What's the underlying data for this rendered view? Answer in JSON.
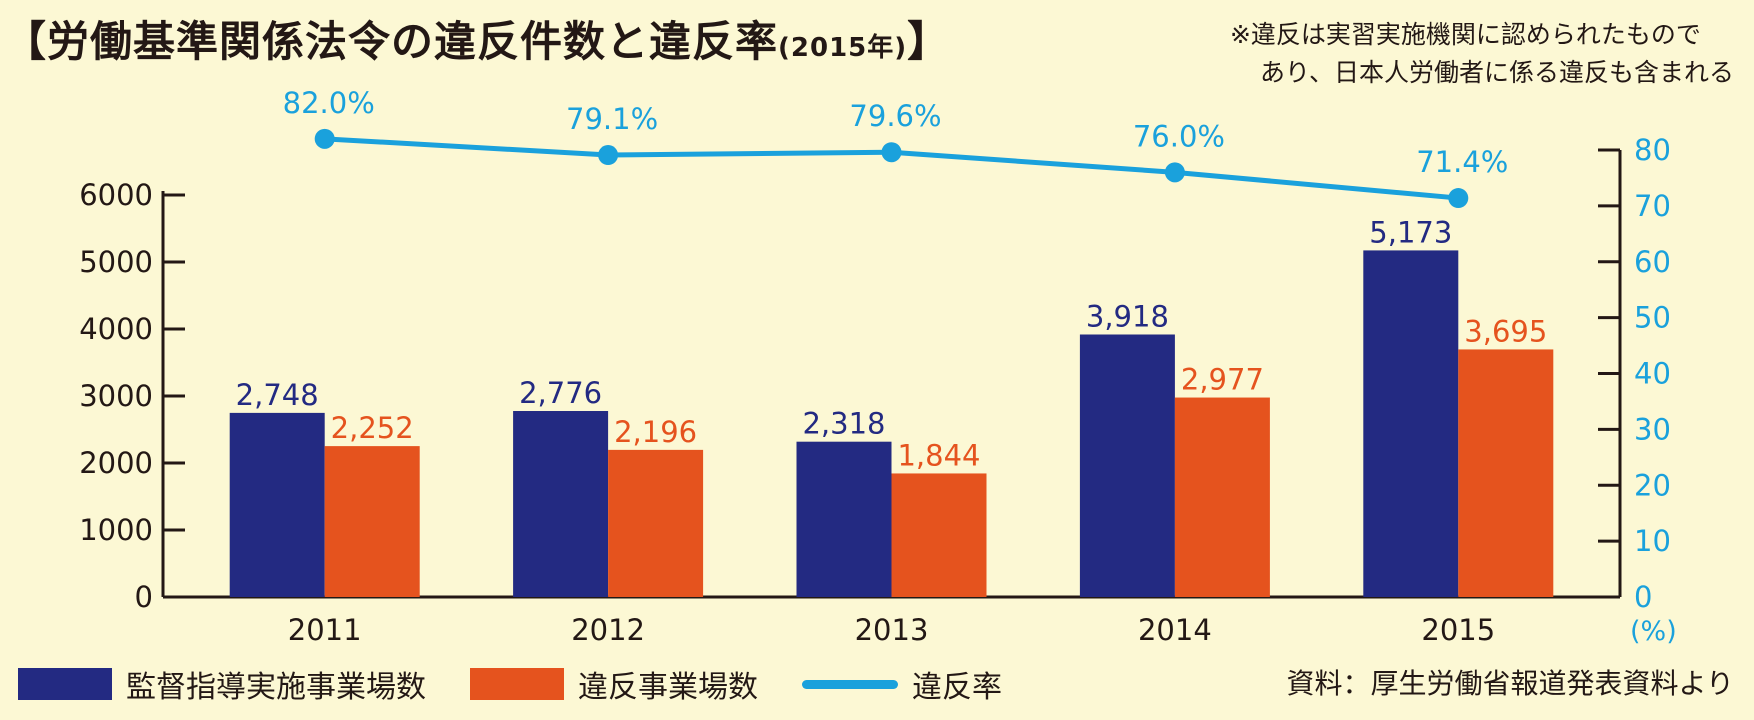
{
  "title": {
    "bracket_open": "【",
    "main": "労働基準関係法令の違反件数と違反率",
    "sub": "(2015年)",
    "bracket_close": "】"
  },
  "note": {
    "line1": "※違反は実習実施機関に認められたもので",
    "line2": "あり、日本人労働者に係る違反も含まれる"
  },
  "source": "資料：厚生労働省報道発表資料より",
  "colors": {
    "bar1": "#232a82",
    "bar2": "#e5531e",
    "line": "#1aa1dc",
    "axis": "#231815",
    "background": "#fcf8d4"
  },
  "chart_data": {
    "type": "bar",
    "categories": [
      "2011",
      "2012",
      "2013",
      "2014",
      "2015"
    ],
    "series": [
      {
        "name": "監督指導実施事業場数",
        "values": [
          2748,
          2776,
          2318,
          3918,
          5173
        ],
        "labels": [
          "2,748",
          "2,776",
          "2,318",
          "3,918",
          "5,173"
        ],
        "axis": "left"
      },
      {
        "name": "違反事業場数",
        "values": [
          2252,
          2196,
          1844,
          2977,
          3695
        ],
        "labels": [
          "2,252",
          "2,196",
          "1,844",
          "2,977",
          "3,695"
        ],
        "axis": "left"
      },
      {
        "name": "違反率",
        "type": "line",
        "values": [
          82.0,
          79.1,
          79.6,
          76.0,
          71.4
        ],
        "labels": [
          "82.0%",
          "79.1%",
          "79.6%",
          "76.0%",
          "71.4%"
        ],
        "axis": "right"
      }
    ],
    "ylim": [
      0,
      6000
    ],
    "yticks": [
      0,
      1000,
      2000,
      3000,
      4000,
      5000,
      6000
    ],
    "y2lim": [
      0,
      80
    ],
    "y2ticks": [
      0,
      10,
      20,
      30,
      40,
      50,
      60,
      70,
      80
    ],
    "y2unit": "(%)",
    "grid": false,
    "legend_position": "bottom"
  }
}
